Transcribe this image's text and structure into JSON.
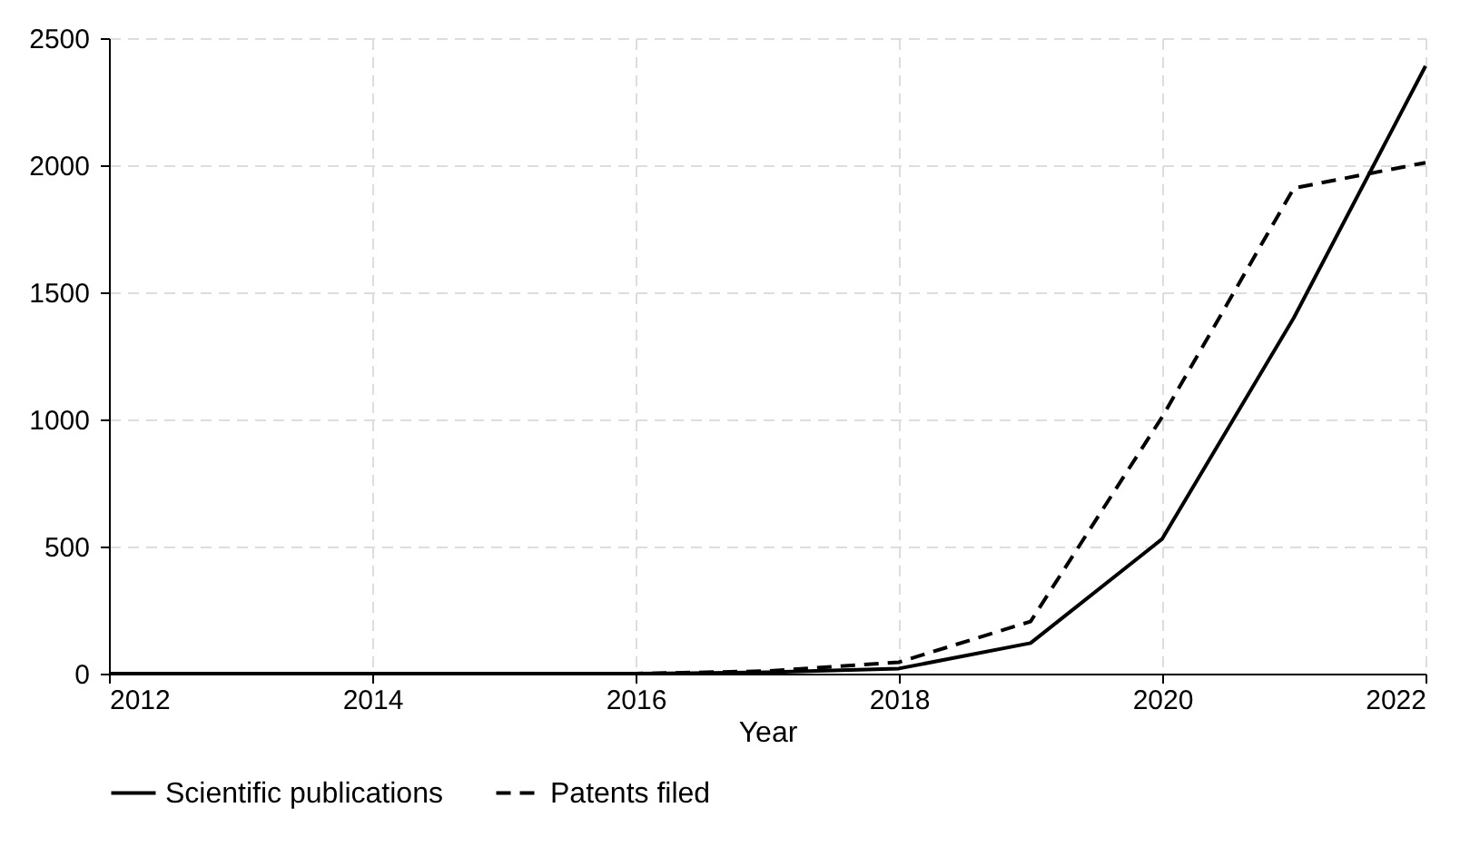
{
  "chart_data": {
    "type": "line",
    "xlabel": "Year",
    "x": [
      2012,
      2013,
      2014,
      2015,
      2016,
      2017,
      2018,
      2019,
      2020,
      2021,
      2022
    ],
    "series": [
      {
        "name": "Scientific publications",
        "color": "#000000",
        "line_style": "solid",
        "values": [
          0,
          0,
          0,
          0,
          0,
          5,
          20,
          120,
          530,
          1400,
          2390
        ]
      },
      {
        "name": "Patents filed",
        "color": "#000000",
        "line_style": "dashed",
        "values": [
          0,
          0,
          0,
          0,
          0,
          10,
          45,
          205,
          1010,
          1910,
          2010
        ]
      }
    ],
    "xlim": [
      2012,
      2022
    ],
    "xticks": [
      2012,
      2014,
      2016,
      2018,
      2020,
      2022
    ],
    "ylim": [
      0,
      2500
    ],
    "yticks": [
      0,
      500,
      1000,
      1500,
      2000,
      2500
    ],
    "grid": true,
    "legend": "bottom",
    "marker": "none"
  }
}
